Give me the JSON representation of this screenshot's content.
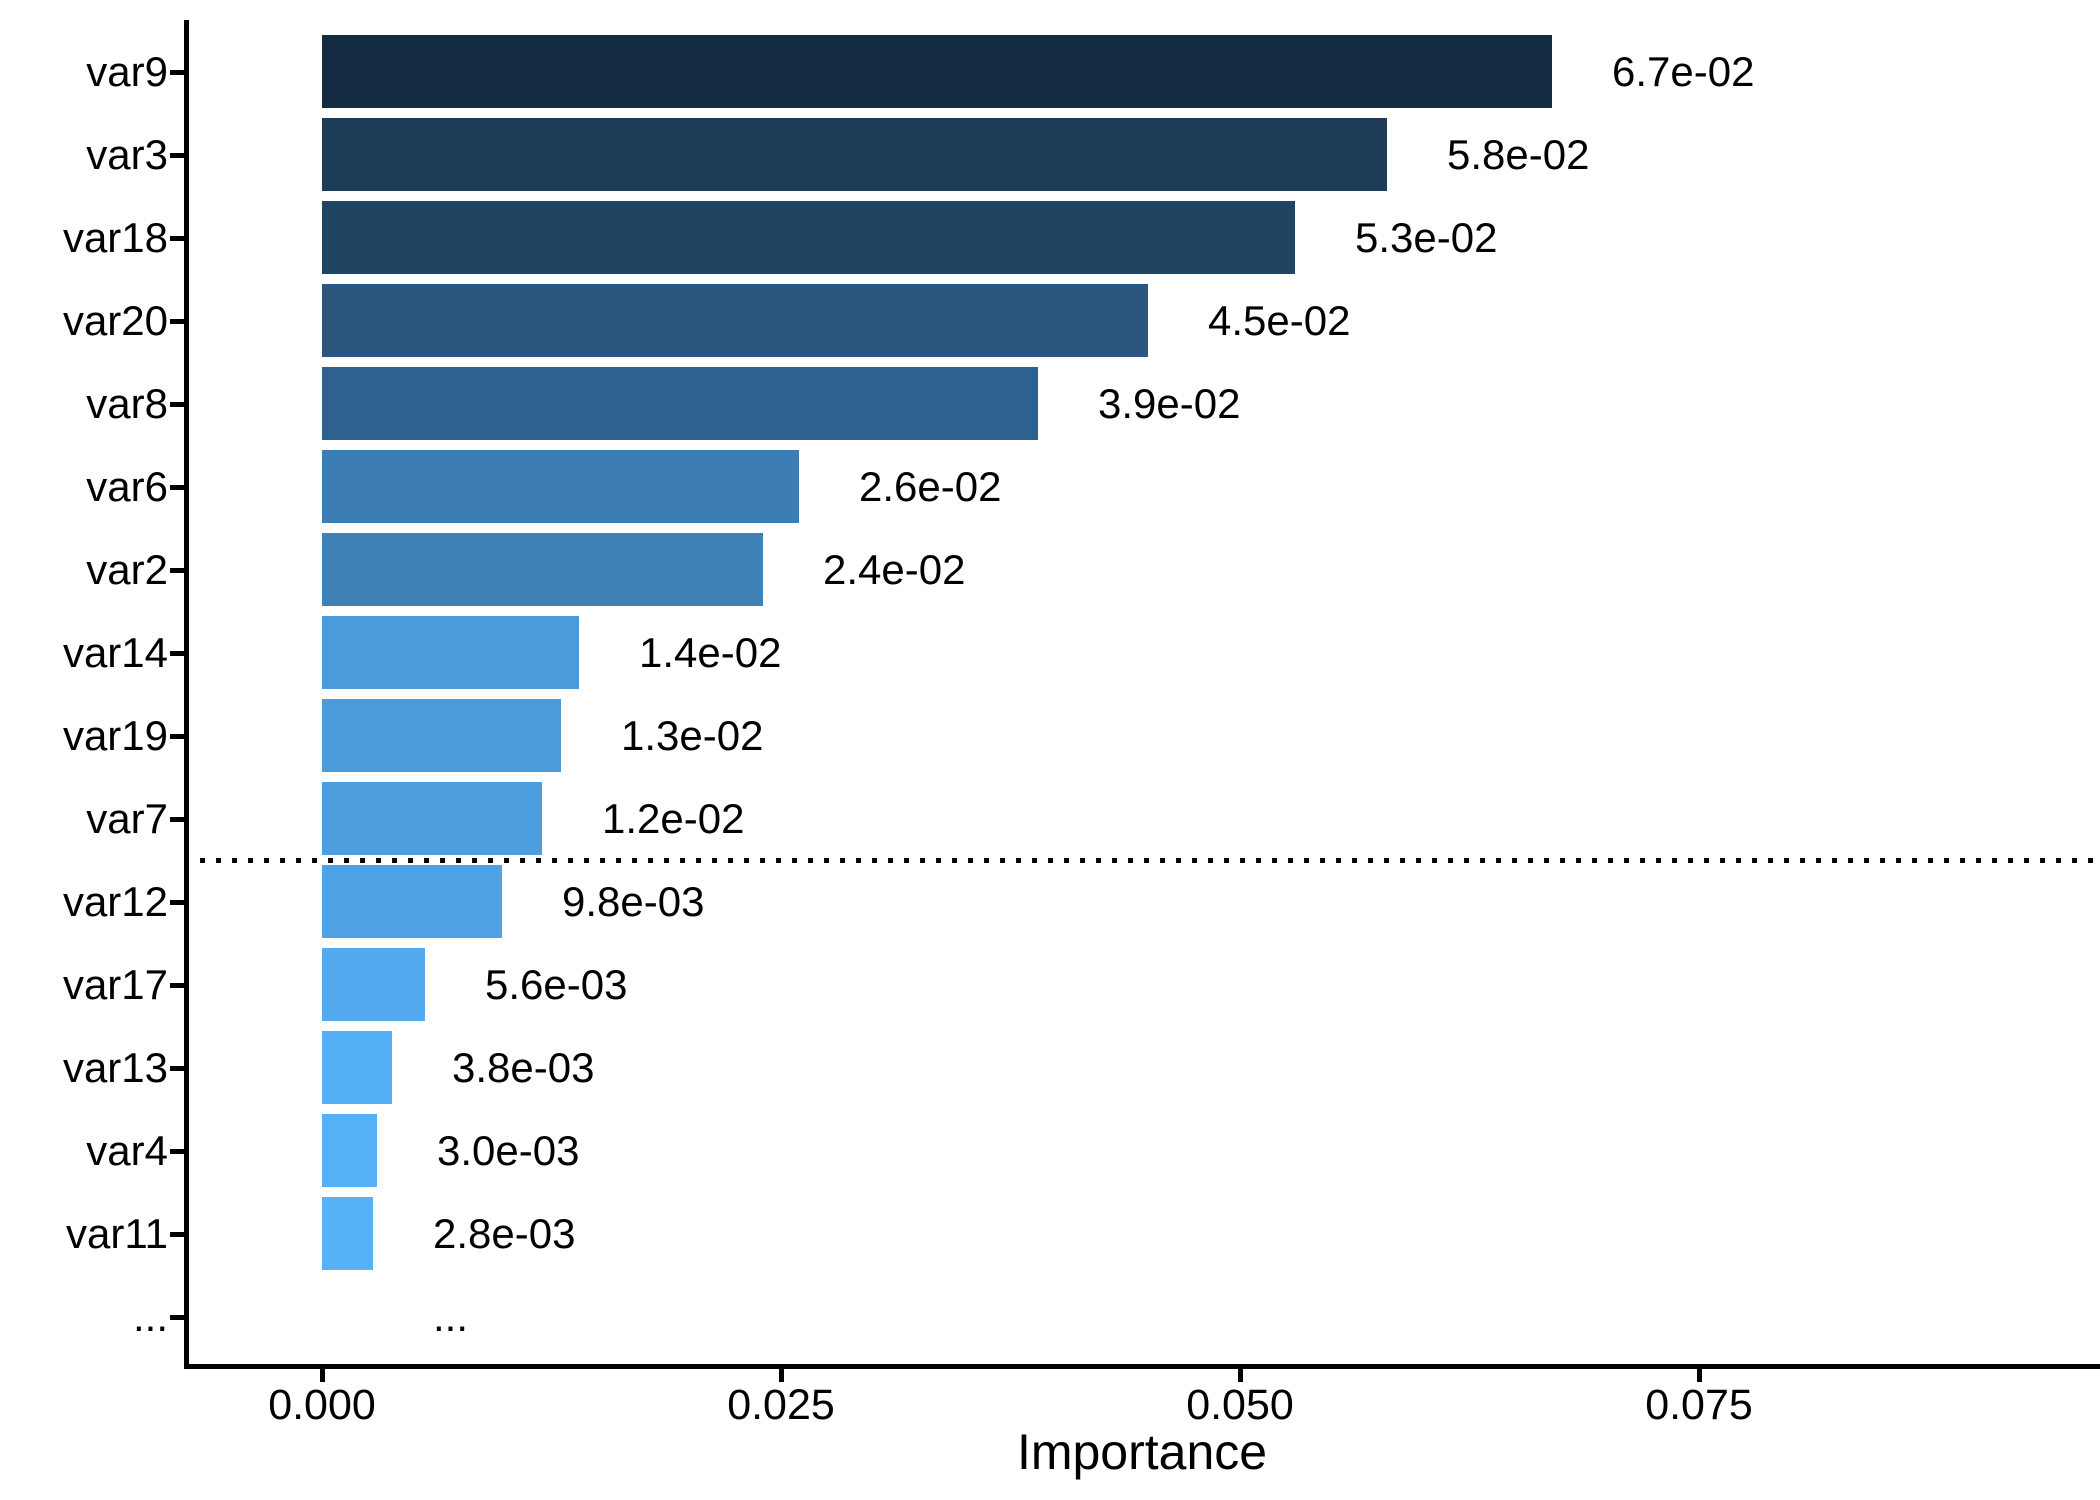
{
  "chart_data": {
    "type": "bar",
    "orientation": "horizontal",
    "title": "",
    "xlabel": "Importance",
    "ylabel": "",
    "grid": false,
    "legend": false,
    "xlim": [
      -0.0074,
      0.0968
    ],
    "x_axis": {
      "tick_values": [
        0,
        0.025,
        0.05,
        0.075
      ],
      "tick_labels": [
        "0.000",
        "0.025",
        "0.050",
        "0.075"
      ]
    },
    "bars": [
      {
        "label": "var9",
        "value": 0.067,
        "value_label": "6.7e-02",
        "color": "#132B43"
      },
      {
        "label": "var3",
        "value": 0.058,
        "value_label": "5.8e-02",
        "color": "#1C3C58"
      },
      {
        "label": "var18",
        "value": 0.053,
        "value_label": "5.3e-02",
        "color": "#224463"
      },
      {
        "label": "var20",
        "value": 0.045,
        "value_label": "4.5e-02",
        "color": "#2A5680"
      },
      {
        "label": "var8",
        "value": 0.039,
        "value_label": "3.9e-02",
        "color": "#2E6090"
      },
      {
        "label": "var6",
        "value": 0.026,
        "value_label": "2.6e-02",
        "color": "#3C7EB3"
      },
      {
        "label": "var2",
        "value": 0.024,
        "value_label": "2.4e-02",
        "color": "#3F82B8"
      },
      {
        "label": "var14",
        "value": 0.014,
        "value_label": "1.4e-02",
        "color": "#4B9AD9"
      },
      {
        "label": "var19",
        "value": 0.013,
        "value_label": "1.3e-02",
        "color": "#4C9CDC"
      },
      {
        "label": "var7",
        "value": 0.012,
        "value_label": "1.2e-02",
        "color": "#4D9EDE"
      },
      {
        "label": "var12",
        "value": 0.0098,
        "value_label": "9.8e-03",
        "color": "#4FA2E3"
      },
      {
        "label": "var17",
        "value": 0.0056,
        "value_label": "5.6e-03",
        "color": "#53AAEE"
      },
      {
        "label": "var13",
        "value": 0.0038,
        "value_label": "3.8e-03",
        "color": "#55AFF4"
      },
      {
        "label": "var4",
        "value": 0.003,
        "value_label": "3.0e-03",
        "color": "#56B0F6"
      },
      {
        "label": "var11",
        "value": 0.0028,
        "value_label": "2.8e-03",
        "color": "#56B1F7"
      },
      {
        "label": "...",
        "value": null,
        "value_label": "...",
        "color": null
      }
    ],
    "threshold_line": {
      "style": "dotted",
      "color": "#000000",
      "position_between": [
        "var7",
        "var12"
      ]
    },
    "colors": {
      "gradient_high_importance": "#132B43",
      "gradient_low_importance": "#56B1F7",
      "axis": "#000000",
      "text": "#000000",
      "background": "#FFFFFF"
    }
  }
}
